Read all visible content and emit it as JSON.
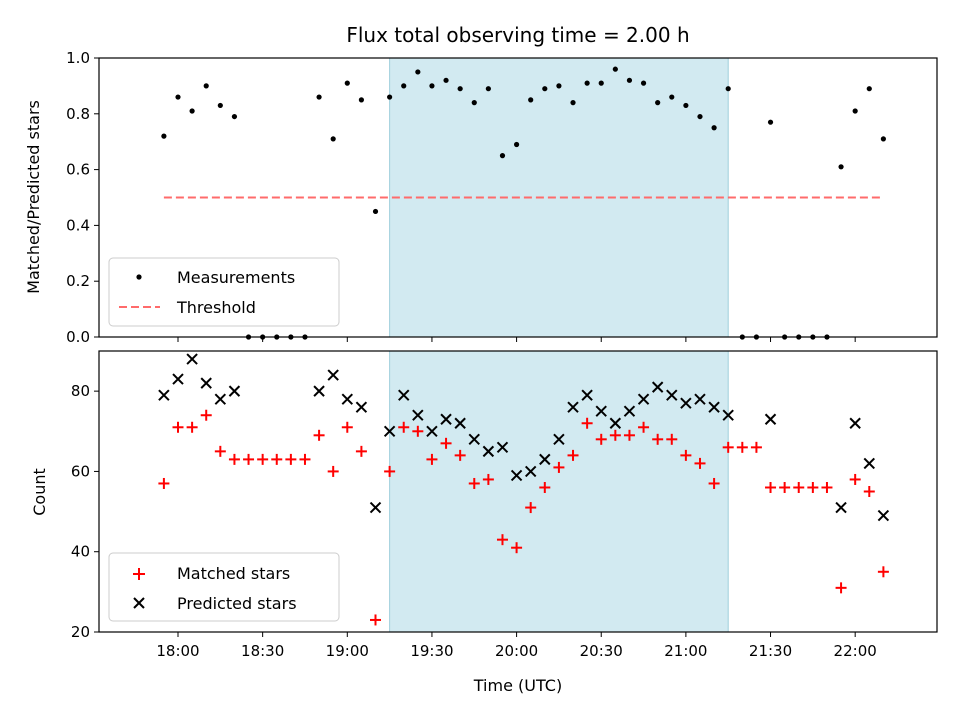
{
  "chart_data": {
    "type": "scatter",
    "title": "Flux total observing time = 2.00 h",
    "xlabel": "Time (UTC)",
    "x_ticks": [
      "18:00",
      "18:30",
      "19:00",
      "19:30",
      "20:00",
      "20:30",
      "21:00",
      "21:30",
      "22:00"
    ],
    "highlight_span": [
      "19:15",
      "21:15"
    ],
    "highlight_color": "#add8e6",
    "top_panel": {
      "ylabel": "Matched/Predicted stars",
      "ylim": [
        0.0,
        1.0
      ],
      "y_ticks": [
        "0.0",
        "0.2",
        "0.4",
        "0.6",
        "0.8",
        "1.0"
      ],
      "threshold": 0.5,
      "threshold_range": [
        "17:55",
        "22:10"
      ],
      "threshold_color": "#ff6b6b",
      "legend": [
        "Measurements",
        "Threshold"
      ],
      "legend_position": "lower-left",
      "series": [
        {
          "name": "Measurements",
          "color": "#000000",
          "points": [
            [
              "17:55",
              0.72
            ],
            [
              "18:00",
              0.86
            ],
            [
              "18:05",
              0.81
            ],
            [
              "18:10",
              0.9
            ],
            [
              "18:15",
              0.83
            ],
            [
              "18:20",
              0.79
            ],
            [
              "18:25",
              0.0
            ],
            [
              "18:30",
              0.0
            ],
            [
              "18:35",
              0.0
            ],
            [
              "18:40",
              0.0
            ],
            [
              "18:45",
              0.0
            ],
            [
              "18:50",
              0.86
            ],
            [
              "18:55",
              0.71
            ],
            [
              "19:00",
              0.91
            ],
            [
              "19:05",
              0.85
            ],
            [
              "19:10",
              0.45
            ],
            [
              "19:15",
              0.86
            ],
            [
              "19:20",
              0.9
            ],
            [
              "19:25",
              0.95
            ],
            [
              "19:30",
              0.9
            ],
            [
              "19:35",
              0.92
            ],
            [
              "19:40",
              0.89
            ],
            [
              "19:45",
              0.84
            ],
            [
              "19:50",
              0.89
            ],
            [
              "19:55",
              0.65
            ],
            [
              "20:00",
              0.69
            ],
            [
              "20:05",
              0.85
            ],
            [
              "20:10",
              0.89
            ],
            [
              "20:15",
              0.9
            ],
            [
              "20:20",
              0.84
            ],
            [
              "20:25",
              0.91
            ],
            [
              "20:30",
              0.91
            ],
            [
              "20:35",
              0.96
            ],
            [
              "20:40",
              0.92
            ],
            [
              "20:45",
              0.91
            ],
            [
              "20:50",
              0.84
            ],
            [
              "20:55",
              0.86
            ],
            [
              "21:00",
              0.83
            ],
            [
              "21:05",
              0.79
            ],
            [
              "21:10",
              0.75
            ],
            [
              "21:15",
              0.89
            ],
            [
              "21:20",
              0.0
            ],
            [
              "21:25",
              0.0
            ],
            [
              "21:30",
              0.77
            ],
            [
              "21:35",
              0.0
            ],
            [
              "21:40",
              0.0
            ],
            [
              "21:45",
              0.0
            ],
            [
              "21:50",
              0.0
            ],
            [
              "21:55",
              0.61
            ],
            [
              "22:00",
              0.81
            ],
            [
              "22:05",
              0.89
            ],
            [
              "22:10",
              0.71
            ]
          ]
        }
      ]
    },
    "bottom_panel": {
      "ylabel": "Count",
      "ylim": [
        20,
        90
      ],
      "y_ticks": [
        "20",
        "40",
        "60",
        "80"
      ],
      "legend": [
        "Matched stars",
        "Predicted stars"
      ],
      "legend_position": "lower-left",
      "series": [
        {
          "name": "Matched stars",
          "marker": "plus",
          "color": "#ff0000",
          "points": [
            [
              "17:55",
              57
            ],
            [
              "18:00",
              71
            ],
            [
              "18:05",
              71
            ],
            [
              "18:10",
              74
            ],
            [
              "18:15",
              65
            ],
            [
              "18:20",
              63
            ],
            [
              "18:25",
              63
            ],
            [
              "18:30",
              63
            ],
            [
              "18:35",
              63
            ],
            [
              "18:40",
              63
            ],
            [
              "18:45",
              63
            ],
            [
              "18:50",
              69
            ],
            [
              "18:55",
              60
            ],
            [
              "19:00",
              71
            ],
            [
              "19:05",
              65
            ],
            [
              "19:10",
              23
            ],
            [
              "19:15",
              60
            ],
            [
              "19:20",
              71
            ],
            [
              "19:25",
              70
            ],
            [
              "19:30",
              63
            ],
            [
              "19:35",
              67
            ],
            [
              "19:40",
              64
            ],
            [
              "19:45",
              57
            ],
            [
              "19:50",
              58
            ],
            [
              "19:55",
              43
            ],
            [
              "20:00",
              41
            ],
            [
              "20:05",
              51
            ],
            [
              "20:10",
              56
            ],
            [
              "20:15",
              61
            ],
            [
              "20:20",
              64
            ],
            [
              "20:25",
              72
            ],
            [
              "20:30",
              68
            ],
            [
              "20:35",
              69
            ],
            [
              "20:40",
              69
            ],
            [
              "20:45",
              71
            ],
            [
              "20:50",
              68
            ],
            [
              "20:55",
              68
            ],
            [
              "21:00",
              64
            ],
            [
              "21:05",
              62
            ],
            [
              "21:10",
              57
            ],
            [
              "21:15",
              66
            ],
            [
              "21:20",
              66
            ],
            [
              "21:25",
              66
            ],
            [
              "21:30",
              56
            ],
            [
              "21:35",
              56
            ],
            [
              "21:40",
              56
            ],
            [
              "21:45",
              56
            ],
            [
              "21:50",
              56
            ],
            [
              "21:55",
              31
            ],
            [
              "22:00",
              58
            ],
            [
              "22:05",
              55
            ],
            [
              "22:10",
              35
            ]
          ]
        },
        {
          "name": "Predicted stars",
          "marker": "x",
          "color": "#000000",
          "points": [
            [
              "17:55",
              79
            ],
            [
              "18:00",
              83
            ],
            [
              "18:05",
              88
            ],
            [
              "18:10",
              82
            ],
            [
              "18:15",
              78
            ],
            [
              "18:20",
              80
            ],
            [
              "18:50",
              80
            ],
            [
              "18:55",
              84
            ],
            [
              "19:00",
              78
            ],
            [
              "19:05",
              76
            ],
            [
              "19:10",
              51
            ],
            [
              "19:15",
              70
            ],
            [
              "19:20",
              79
            ],
            [
              "19:25",
              74
            ],
            [
              "19:30",
              70
            ],
            [
              "19:35",
              73
            ],
            [
              "19:40",
              72
            ],
            [
              "19:45",
              68
            ],
            [
              "19:50",
              65
            ],
            [
              "19:55",
              66
            ],
            [
              "20:00",
              59
            ],
            [
              "20:05",
              60
            ],
            [
              "20:10",
              63
            ],
            [
              "20:15",
              68
            ],
            [
              "20:20",
              76
            ],
            [
              "20:25",
              79
            ],
            [
              "20:30",
              75
            ],
            [
              "20:35",
              72
            ],
            [
              "20:40",
              75
            ],
            [
              "20:45",
              78
            ],
            [
              "20:50",
              81
            ],
            [
              "20:55",
              79
            ],
            [
              "21:00",
              77
            ],
            [
              "21:05",
              78
            ],
            [
              "21:10",
              76
            ],
            [
              "21:15",
              74
            ],
            [
              "21:30",
              73
            ],
            [
              "21:55",
              51
            ],
            [
              "22:00",
              72
            ],
            [
              "22:05",
              62
            ],
            [
              "22:10",
              49
            ]
          ]
        }
      ]
    }
  }
}
